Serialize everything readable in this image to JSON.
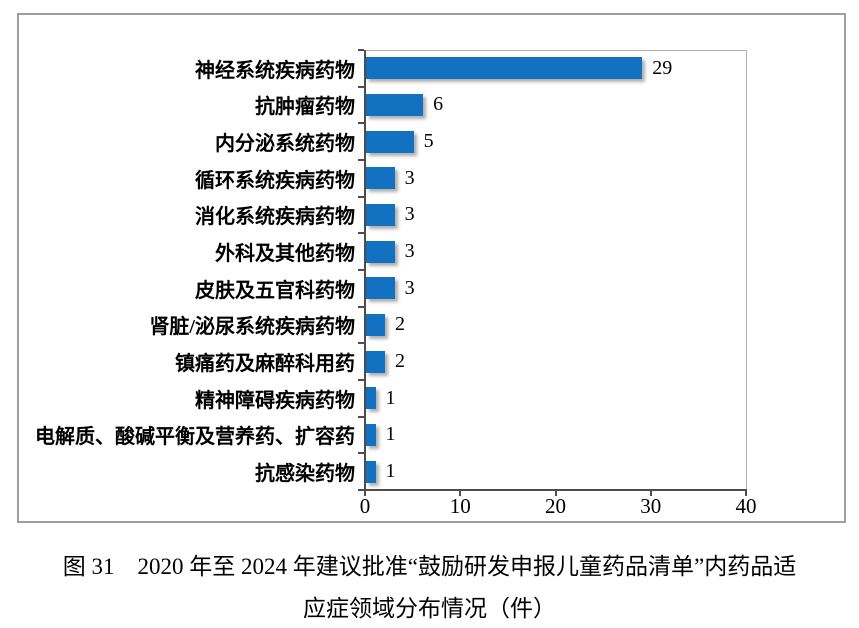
{
  "chart_data": {
    "type": "bar",
    "orientation": "horizontal",
    "categories": [
      "神经系统疾病药物",
      "抗肿瘤药物",
      "内分泌系统药物",
      "循环系统疾病药物",
      "消化系统疾病药物",
      "外科及其他药物",
      "皮肤及五官科药物",
      "肾脏/泌尿系统疾病药物",
      "镇痛药及麻醉科用药",
      "精神障碍疾病药物",
      "电解质、酸碱平衡及营养药、扩容药",
      "抗感染药物"
    ],
    "values": [
      29,
      6,
      5,
      3,
      3,
      3,
      3,
      2,
      2,
      1,
      1,
      1
    ],
    "value_labels": [
      "29",
      "6",
      "5",
      "3",
      "3",
      "3",
      "3",
      "2",
      "2",
      "1",
      "1",
      "1"
    ],
    "xlim": [
      0,
      40
    ],
    "x_ticks": [
      "0",
      "10",
      "20",
      "30",
      "40"
    ],
    "x_tick_values": [
      0,
      10,
      20,
      30,
      40
    ],
    "bar_color": "#1271c0",
    "grid": false,
    "legend": "none",
    "title": ""
  },
  "caption": {
    "line1": "图 31　2020 年至 2024 年建议批准“鼓励研发申报儿童药品清单”内药品适",
    "line2": "应症领域分布情况（件）"
  }
}
